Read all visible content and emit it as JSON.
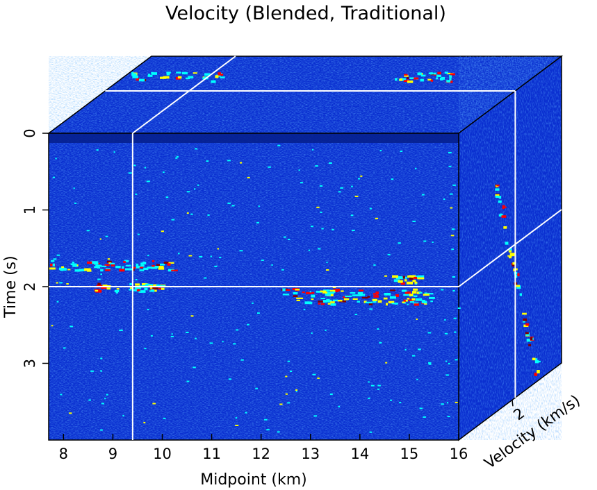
{
  "chart_data": {
    "type": "heatmap",
    "title": "Velocity (Blended, Traditional)",
    "xlabel": "Midpoint (km)",
    "ylabel": "Time (s)",
    "zlabel": "Velocity (km/s)",
    "x_ticks": [
      "8",
      "9",
      "10",
      "11",
      "12",
      "13",
      "14",
      "15",
      "16"
    ],
    "y_ticks": [
      "0",
      "1",
      "2",
      "3"
    ],
    "z_ticks": [
      "2"
    ],
    "xlim": [
      7.7,
      16
    ],
    "ylim": [
      0,
      4
    ],
    "slices": {
      "midpoint_km": 9.4,
      "time_s": 2.0,
      "velocity_km_s": 2.0
    },
    "colormap": [
      "#00008f",
      "#0000ff",
      "#00ffff",
      "#ffff00",
      "#ff0000",
      "#800000"
    ]
  }
}
